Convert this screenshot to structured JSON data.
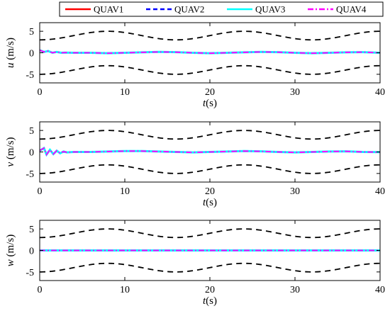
{
  "chart_data": {
    "type": "line",
    "legend": {
      "placement": "top",
      "entries": [
        {
          "name": "QUAV1",
          "color": "#ff0000",
          "style": "solid"
        },
        {
          "name": "QUAV2",
          "color": "#0000ff",
          "style": "dashed"
        },
        {
          "name": "QUAV3",
          "color": "#00ffff",
          "style": "solid"
        },
        {
          "name": "QUAV4",
          "color": "#ff00ff",
          "style": "dashdot"
        }
      ]
    },
    "bound_color": "#000000",
    "subplots": [
      {
        "ylabel_var": "u",
        "ylabel_unit": " (m/s)",
        "xlabel_var": "t",
        "xlabel_unit": "(s)",
        "xlim": [
          0,
          40
        ],
        "ylim": [
          -7,
          7
        ],
        "xticks": [
          0,
          10,
          20,
          30,
          40
        ],
        "yticks": [
          -5,
          0,
          5
        ],
        "bounds": {
          "upper": {
            "center": 4,
            "amplitude": 1,
            "period": 16,
            "phase_x": 4
          },
          "lower": {
            "center": -4,
            "amplitude": 1,
            "period": 16,
            "phase_x": 4
          }
        },
        "signal": {
          "x": [
            0,
            0.5,
            1,
            1.5,
            2,
            2.5,
            3,
            4,
            6,
            8,
            10,
            12,
            14,
            16,
            18,
            20,
            22,
            24,
            26,
            28,
            30,
            32,
            34,
            36,
            38,
            40
          ],
          "y": [
            0.6,
            0.2,
            0.4,
            0.0,
            0.2,
            0.0,
            0.05,
            0.0,
            0.0,
            -0.1,
            0.0,
            0.1,
            0.2,
            0.15,
            0.0,
            -0.1,
            0.0,
            0.1,
            0.2,
            0.15,
            0.0,
            -0.1,
            0.0,
            0.1,
            0.15,
            0.0
          ]
        }
      },
      {
        "ylabel_var": "v",
        "ylabel_unit": " (m/s)",
        "xlabel_var": "t",
        "xlabel_unit": "(s)",
        "xlim": [
          0,
          40
        ],
        "ylim": [
          -7,
          7
        ],
        "xticks": [
          0,
          10,
          20,
          30,
          40
        ],
        "yticks": [
          -5,
          0,
          5
        ],
        "bounds": {
          "upper": {
            "center": 4,
            "amplitude": 1,
            "period": 16,
            "phase_x": 4
          },
          "lower": {
            "center": -4,
            "amplitude": 1,
            "period": 16,
            "phase_x": 4
          }
        },
        "signal": {
          "x": [
            0,
            0.5,
            0.8,
            1.2,
            1.6,
            2,
            2.4,
            2.8,
            3.2,
            4,
            6,
            8,
            10,
            12,
            14,
            16,
            18,
            20,
            22,
            24,
            26,
            28,
            30,
            32,
            34,
            36,
            38,
            40
          ],
          "y": [
            0.3,
            0.9,
            -0.6,
            0.5,
            -0.5,
            0.3,
            -0.3,
            0.1,
            -0.1,
            0.0,
            0.0,
            0.1,
            0.2,
            0.2,
            0.1,
            0.0,
            -0.1,
            0.0,
            0.1,
            0.2,
            0.15,
            0.0,
            -0.1,
            0.0,
            0.1,
            0.15,
            0.0,
            -0.05
          ]
        }
      },
      {
        "ylabel_var": "w",
        "ylabel_unit": " (m/s)",
        "xlabel_var": "t",
        "xlabel_unit": "(s)",
        "xlim": [
          0,
          40
        ],
        "ylim": [
          -7,
          7
        ],
        "xticks": [
          0,
          10,
          20,
          30,
          40
        ],
        "yticks": [
          -5,
          0,
          5
        ],
        "bounds": {
          "upper": {
            "center": 4,
            "amplitude": 1,
            "period": 16,
            "phase_x": 4
          },
          "lower": {
            "center": -4,
            "amplitude": 1,
            "period": 16,
            "phase_x": 4
          }
        },
        "signal": {
          "x": [
            0,
            40
          ],
          "y": [
            0,
            0
          ]
        }
      }
    ]
  }
}
